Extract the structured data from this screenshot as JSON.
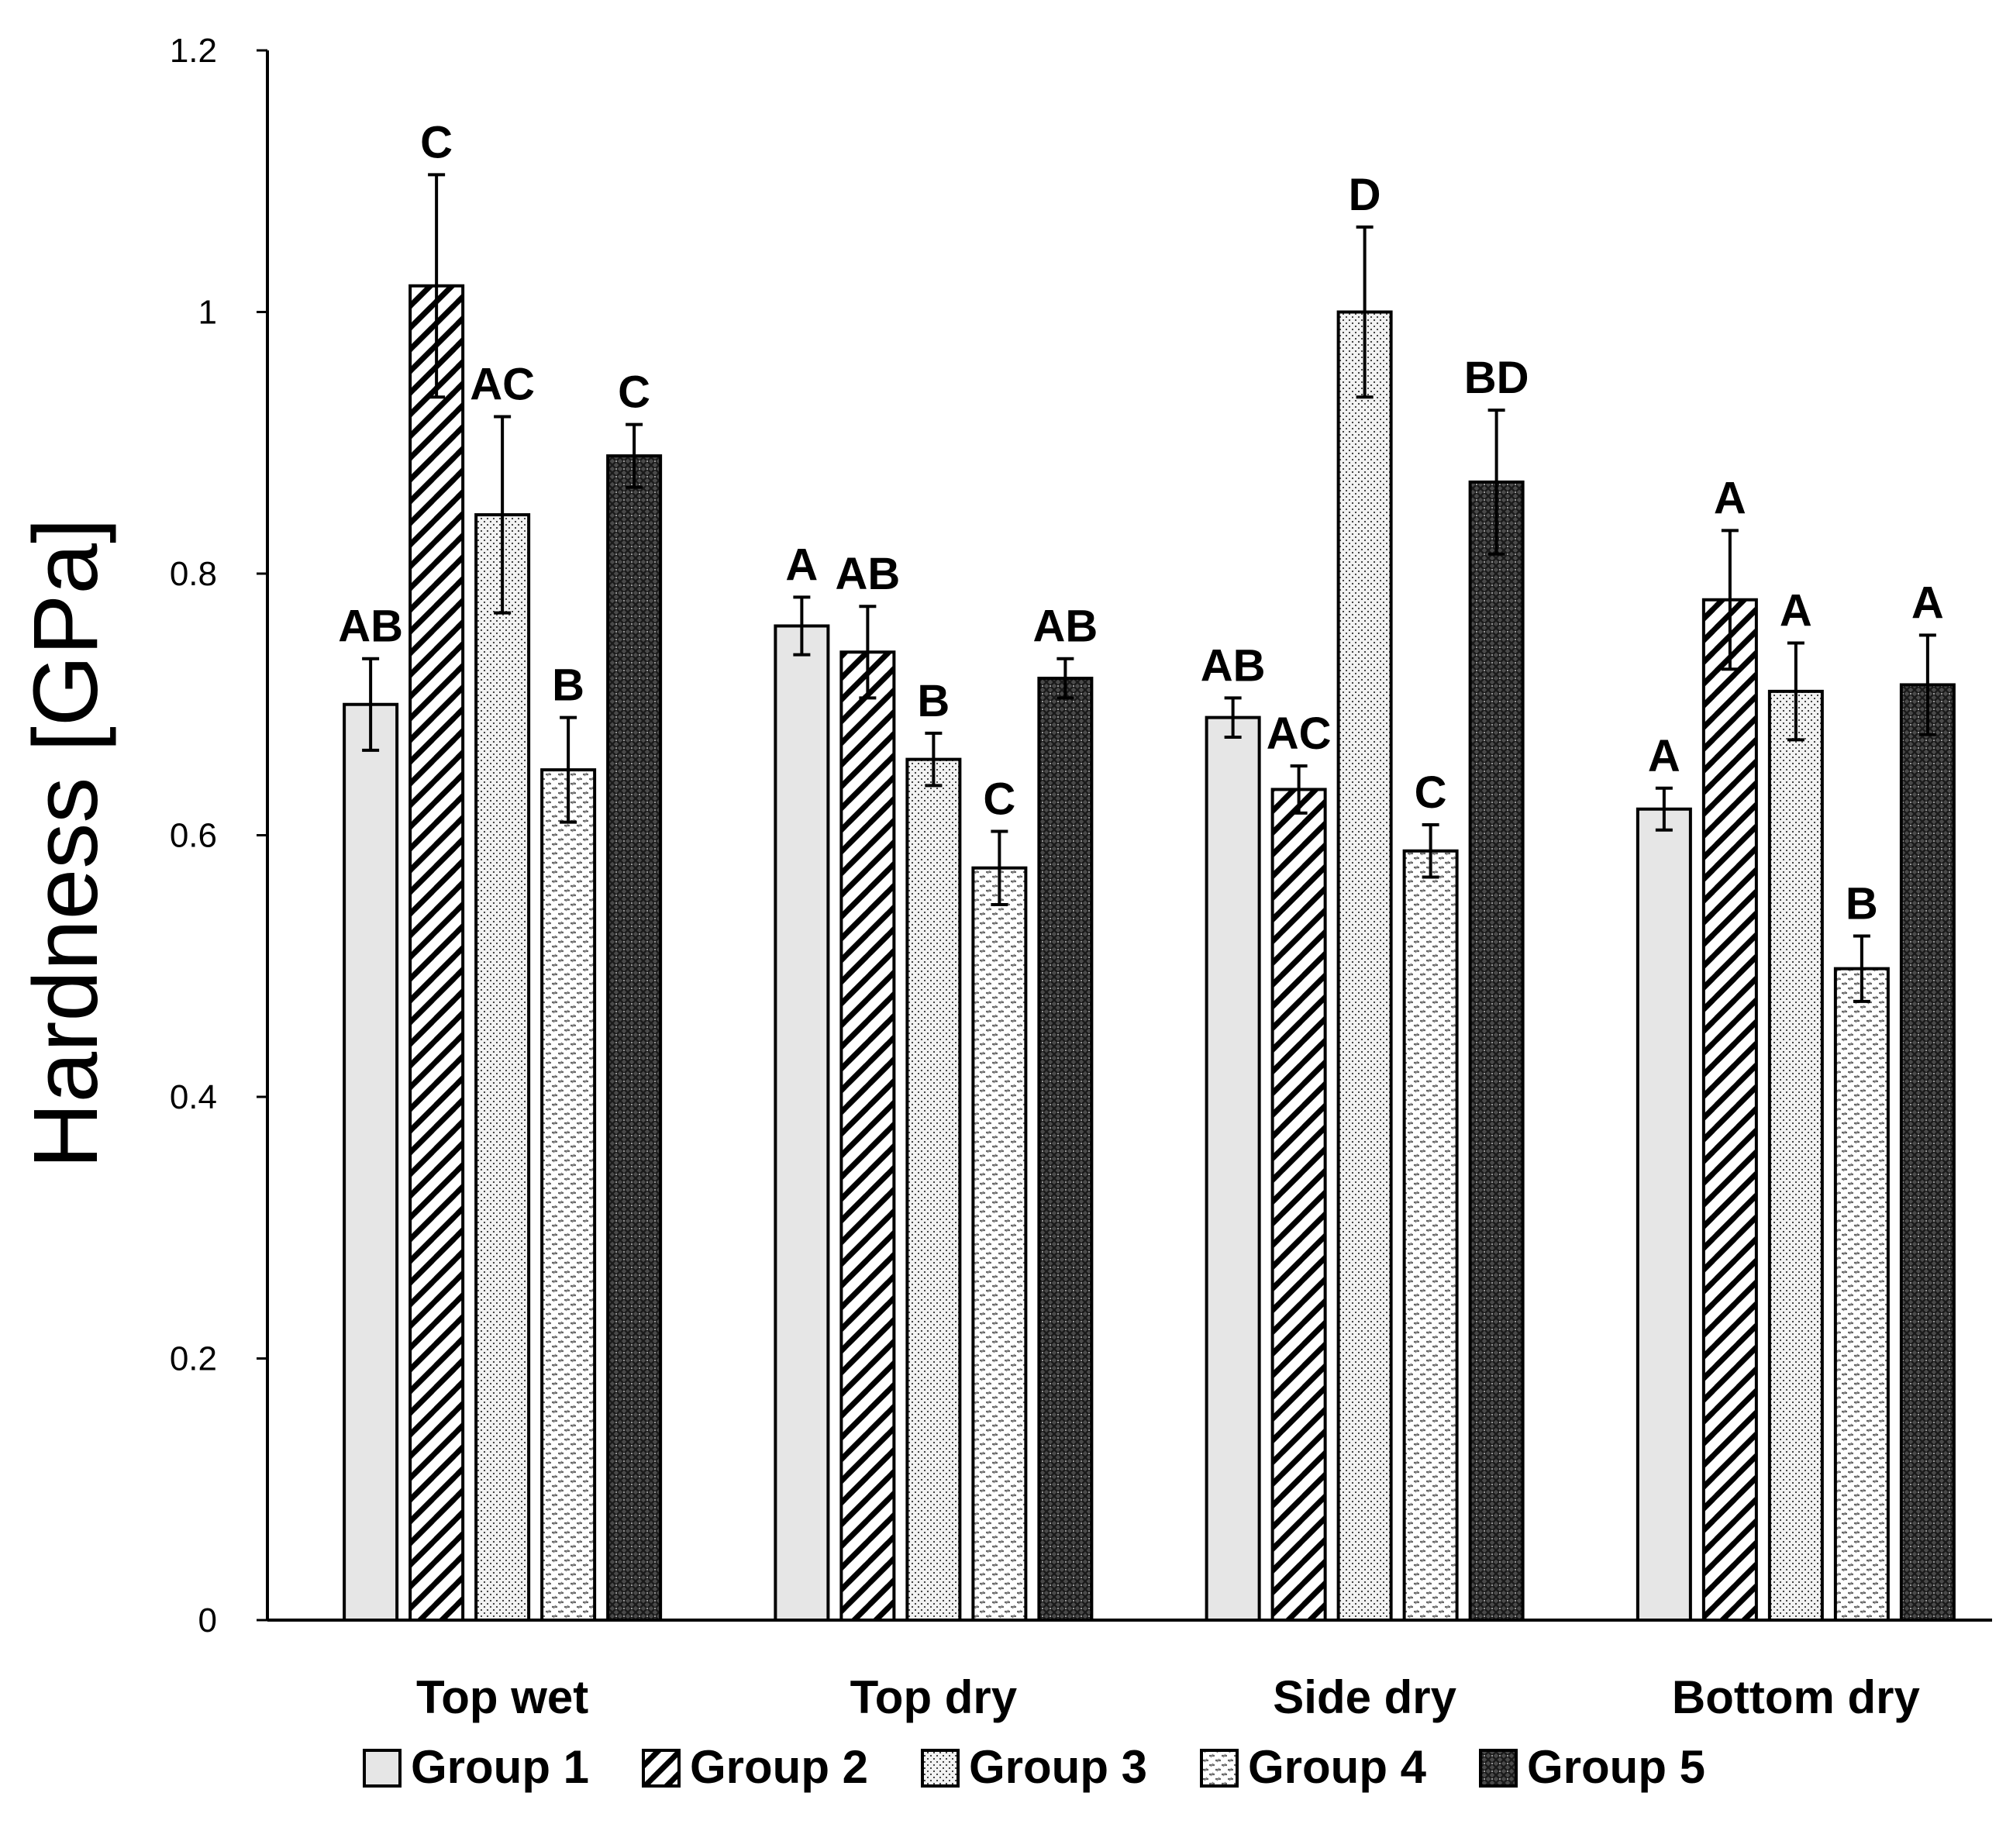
{
  "chart_data": {
    "type": "bar",
    "title": "",
    "xlabel": "",
    "ylabel": "Hardness [GPa]",
    "ylim": [
      0,
      1.2
    ],
    "yticks": [
      "0",
      "0.2",
      "0.4",
      "0.6",
      "0.8",
      "1",
      "1.2"
    ],
    "categories": [
      "Top wet",
      "Top dry",
      "Side dry",
      "Bottom dry"
    ],
    "legend_position": "bottom",
    "grid": false,
    "series": [
      {
        "name": "Group 1",
        "pattern": "solid-light",
        "values": [
          0.7,
          0.76,
          0.69,
          0.62
        ],
        "errors": [
          0.035,
          0.022,
          0.015,
          0.016
        ],
        "labels": [
          "AB",
          "A",
          "AB",
          "A"
        ]
      },
      {
        "name": "Group 2",
        "pattern": "diagonal-stripes",
        "values": [
          1.02,
          0.74,
          0.635,
          0.78
        ],
        "errors": [
          0.085,
          0.035,
          0.018,
          0.053
        ],
        "labels": [
          "C",
          "AB",
          "AC",
          "A"
        ]
      },
      {
        "name": "Group 3",
        "pattern": "fine-dots",
        "values": [
          0.845,
          0.658,
          1.0,
          0.71
        ],
        "errors": [
          0.075,
          0.02,
          0.065,
          0.037
        ],
        "labels": [
          "AC",
          "B",
          "D",
          "A"
        ]
      },
      {
        "name": "Group 4",
        "pattern": "dashed-hatch",
        "values": [
          0.65,
          0.575,
          0.588,
          0.498
        ],
        "errors": [
          0.04,
          0.028,
          0.02,
          0.025
        ],
        "labels": [
          "B",
          "C",
          "C",
          "B"
        ]
      },
      {
        "name": "Group 5",
        "pattern": "dark-crosshatch",
        "values": [
          0.89,
          0.72,
          0.87,
          0.715
        ],
        "errors": [
          0.024,
          0.015,
          0.055,
          0.038
        ],
        "labels": [
          "C",
          "AB",
          "BD",
          "A"
        ]
      }
    ]
  }
}
